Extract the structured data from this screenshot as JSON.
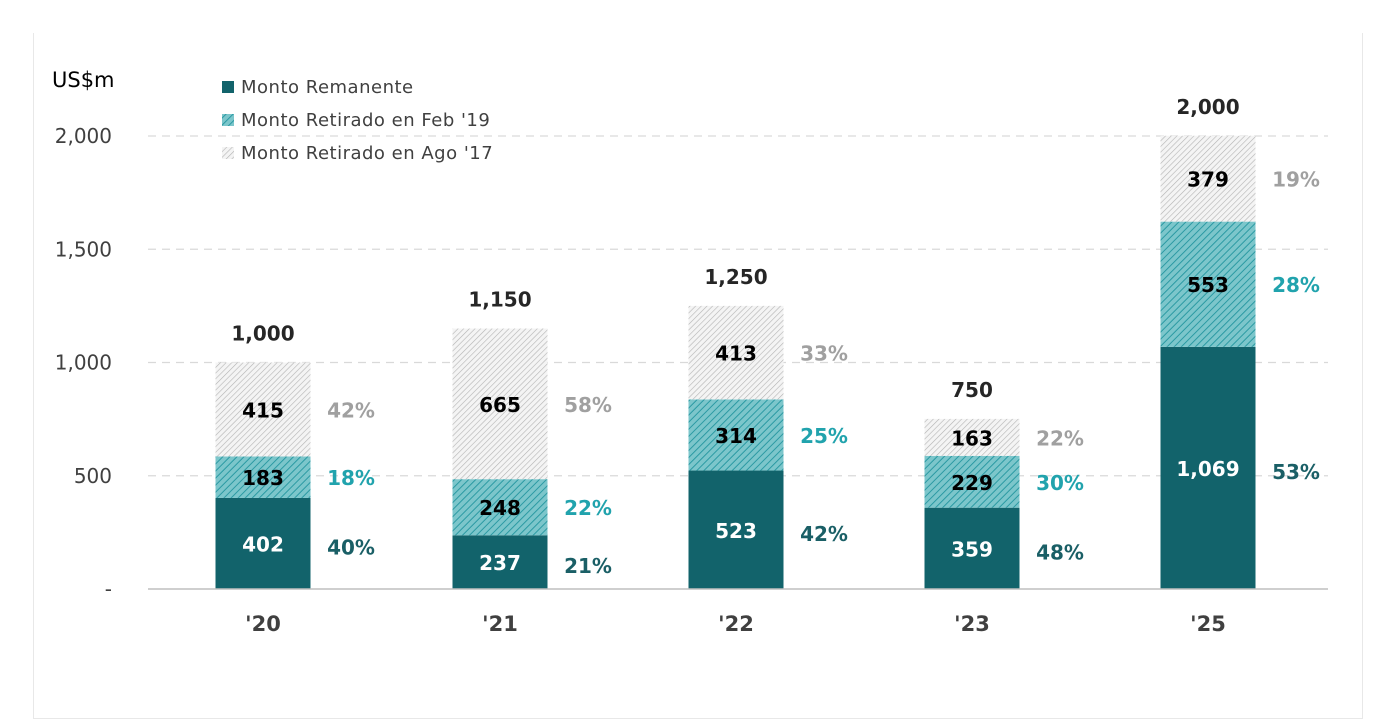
{
  "colors": {
    "remanente": "#12636b",
    "feb19": "#3aa6ae",
    "ago17": "#a8a8a8",
    "pct_remanente": "#1a5f66",
    "pct_feb19": "#21a3ad",
    "pct_ago17": "#a0a0a0",
    "grid": "#d9d9d9",
    "axis": "#bfbfbf"
  },
  "chart_data": {
    "type": "bar",
    "stacked": true,
    "unit_label": "US$m",
    "categories": [
      "'20",
      "'21",
      "'22",
      "'23",
      "'25"
    ],
    "series": [
      {
        "name": "Monto Remanente",
        "values": [
          402,
          237,
          523,
          359,
          1069
        ],
        "value_labels": [
          "402",
          "237",
          "523",
          "359",
          "1,069"
        ],
        "percent_labels": [
          "40%",
          "21%",
          "42%",
          "48%",
          "53%"
        ]
      },
      {
        "name": "Monto Retirado en Feb '19",
        "values": [
          183,
          248,
          314,
          229,
          553
        ],
        "value_labels": [
          "183",
          "248",
          "314",
          "229",
          "553"
        ],
        "percent_labels": [
          "18%",
          "22%",
          "25%",
          "30%",
          "28%"
        ]
      },
      {
        "name": "Monto Retirado en Ago '17",
        "values": [
          415,
          665,
          413,
          163,
          379
        ],
        "value_labels": [
          "415",
          "665",
          "413",
          "163",
          "379"
        ],
        "percent_labels": [
          "42%",
          "58%",
          "33%",
          "22%",
          "19%"
        ]
      }
    ],
    "totals": [
      1000,
      1150,
      1250,
      750,
      2000
    ],
    "total_labels": [
      "1,000",
      "1,150",
      "1,250",
      "750",
      "2,000"
    ],
    "yticks": [
      0,
      500,
      1000,
      1500,
      2000
    ],
    "ytick_labels": [
      "-",
      "500",
      "1,000",
      "1,500",
      "2,000"
    ],
    "ylim": [
      0,
      2000
    ],
    "grid": true,
    "legend_position": "top-left"
  }
}
